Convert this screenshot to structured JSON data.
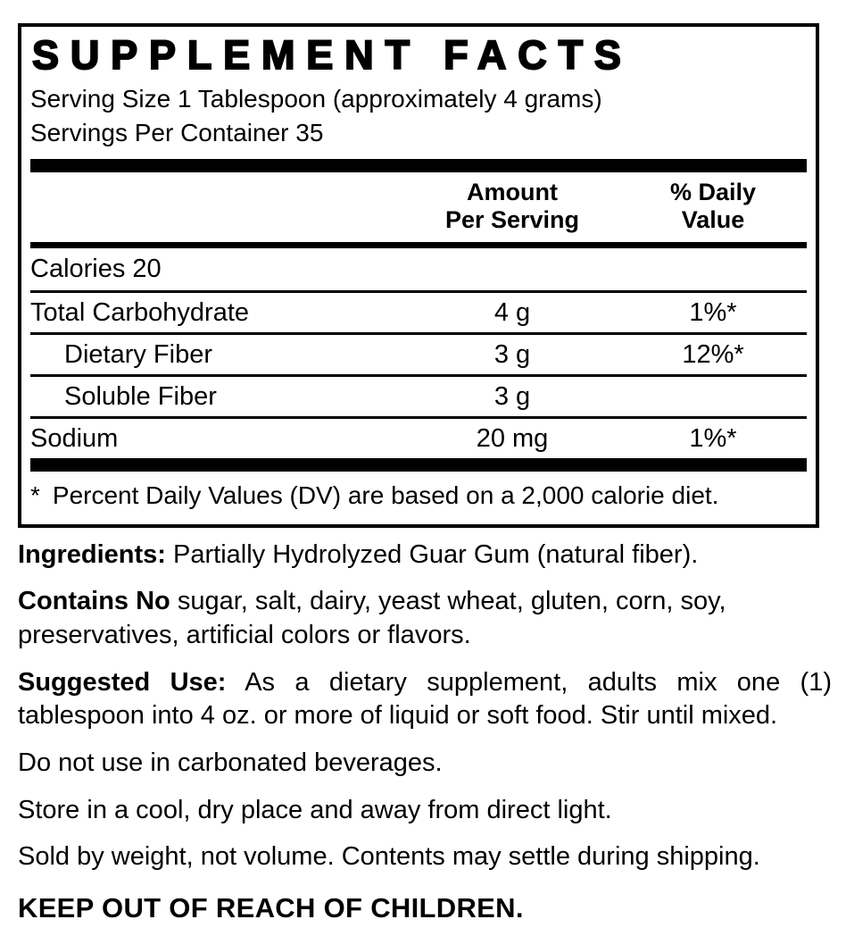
{
  "label": {
    "title": "SUPPLEMENT FACTS",
    "serving_size": "Serving Size 1 Tablespoon (approximately 4 grams)",
    "servings_per_container": "Servings Per Container 35",
    "columns": {
      "amount_line1": "Amount",
      "amount_line2": "Per Serving",
      "dv_line1": "% Daily",
      "dv_line2": "Value"
    },
    "rows": [
      {
        "name": "Calories 20",
        "amount": "",
        "dv": ""
      },
      {
        "name": "Total Carbohydrate",
        "amount": "4 g",
        "dv": "1%*"
      },
      {
        "name": "Dietary Fiber",
        "amount": "3 g",
        "dv": "12%*"
      },
      {
        "name": "Soluble Fiber",
        "amount": "3 g",
        "dv": ""
      },
      {
        "name": "Sodium",
        "amount": "20 mg",
        "dv": "1%*"
      }
    ],
    "footnote_marker": "*",
    "footnote_text": "Percent Daily Values (DV) are based on a 2,000 calorie diet."
  },
  "info": {
    "ingredients_label": "Ingredients:",
    "ingredients_text": "Partially Hydrolyzed Guar Gum (natural fiber).",
    "contains_label": "Contains No",
    "contains_text": "sugar, salt, dairy, yeast wheat, gluten, corn, soy, preservatives, artificial colors or flavors.",
    "suggested_label": "Suggested Use:",
    "suggested_text": "As a dietary supplement, adults mix one (1) tablespoon into 4 oz. or more of liquid or soft food. Stir until mixed.",
    "carbonated_note": "Do not use in carbonated beverages.",
    "storage_note": "Store in a cool, dry place and away from direct light.",
    "settling_note": "Sold by weight, not volume. Contents may settle during shipping.",
    "warning": "KEEP OUT OF REACH OF CHILDREN."
  },
  "colors": {
    "ink": "#000000",
    "background": "#ffffff"
  }
}
